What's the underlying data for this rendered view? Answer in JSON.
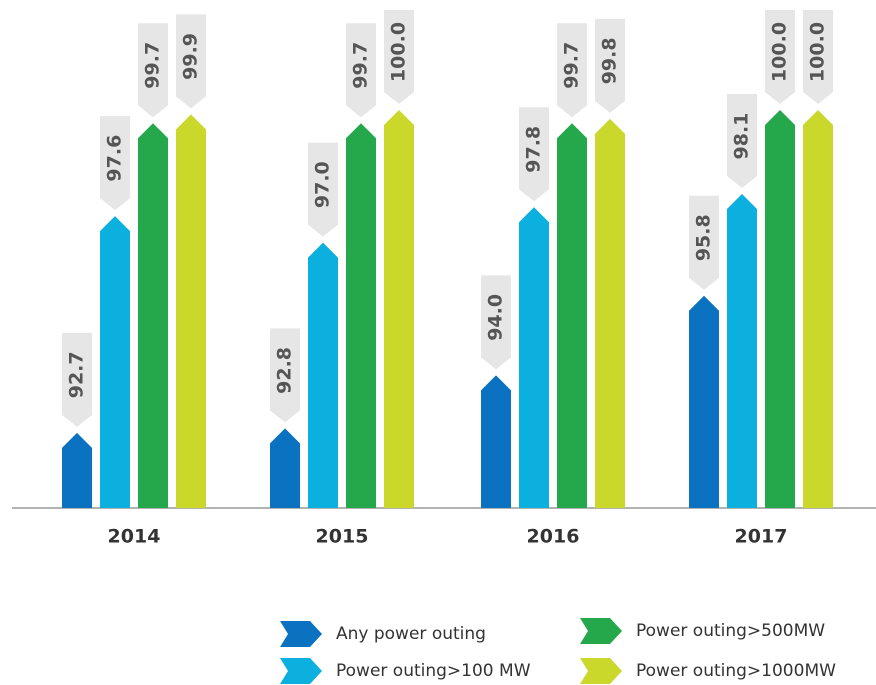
{
  "chart_data": {
    "type": "bar",
    "categories": [
      "2014",
      "2015",
      "2016",
      "2017"
    ],
    "series": [
      {
        "name": "Any power outing",
        "color": "#0a72c0",
        "values": [
          92.7,
          92.8,
          94.0,
          95.8
        ],
        "value_labels": [
          "92.7",
          "92.8",
          "94.0",
          "95.8"
        ]
      },
      {
        "name": "Power outing>100 MW",
        "color": "#0bb0df",
        "values": [
          97.6,
          97.0,
          97.8,
          98.1
        ],
        "value_labels": [
          "97.6",
          "97.0",
          "97.8",
          "98.1"
        ]
      },
      {
        "name": "Power outing>500MW",
        "color": "#24a84b",
        "values": [
          99.7,
          99.7,
          99.7,
          100.0
        ],
        "value_labels": [
          "99.7",
          "99.7",
          "99.7",
          "100.0"
        ]
      },
      {
        "name": "Power outing>1000MW",
        "color": "#c9d82b",
        "values": [
          99.9,
          100.0,
          99.8,
          100.0
        ],
        "value_labels": [
          "99.9",
          "100.0",
          "99.8",
          "100.0"
        ]
      }
    ],
    "ylim": [
      91,
      100
    ],
    "legend": "bottom-right"
  }
}
